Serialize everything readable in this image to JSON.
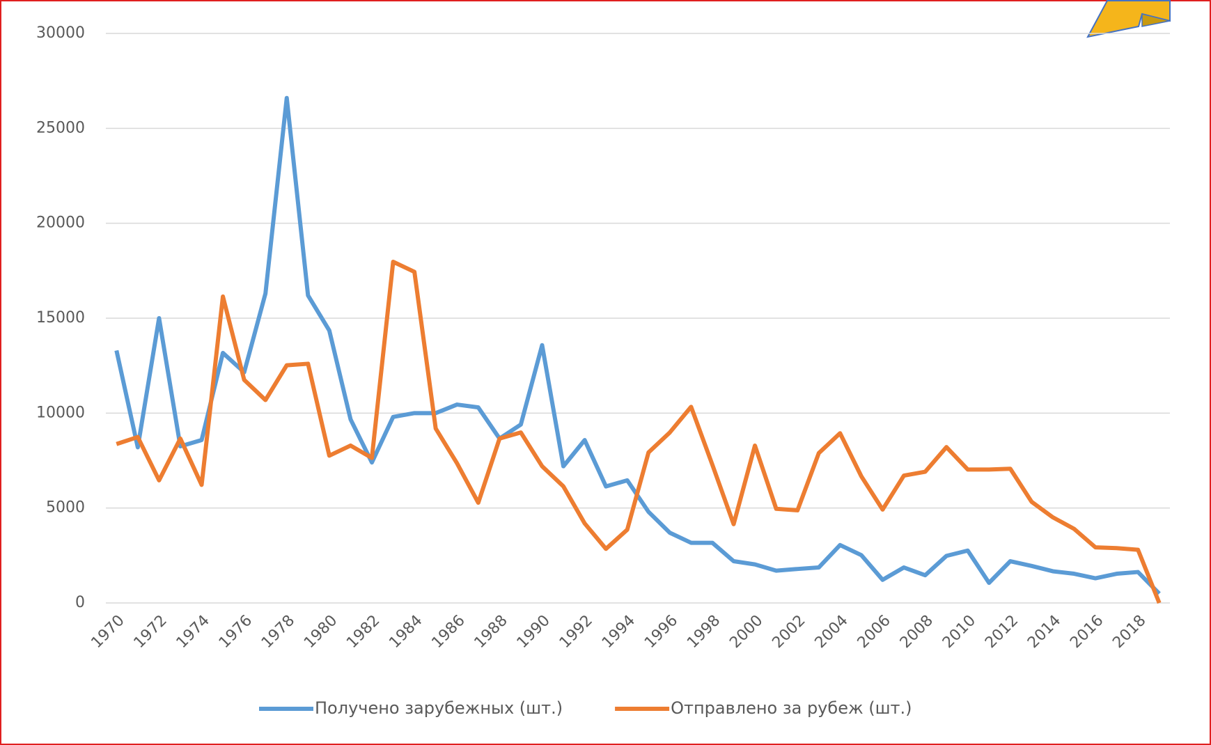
{
  "chart_data": {
    "type": "line",
    "categories": [
      "1970",
      null,
      "1972",
      null,
      "1974",
      null,
      "1976",
      null,
      "1978",
      null,
      "1980",
      null,
      "1982",
      null,
      "1984",
      null,
      "1986",
      null,
      "1988",
      null,
      "1990",
      null,
      "1992",
      null,
      "1994",
      null,
      "1996",
      null,
      "1998",
      null,
      "2000",
      null,
      "2002",
      null,
      "2004",
      null,
      "2006",
      null,
      "2008",
      null,
      "2010",
      null,
      "2012",
      null,
      "2014",
      null,
      "2016",
      null,
      "2018",
      null
    ],
    "series": [
      {
        "name": "Получено зарубежных (шт.)",
        "color": "#5b9bd5",
        "values": [
          13300,
          8200,
          15000,
          8250,
          8580,
          13170,
          12150,
          16300,
          26600,
          16200,
          14350,
          9670,
          7400,
          9800,
          10000,
          10000,
          10450,
          10300,
          8660,
          9400,
          13580,
          7200,
          8580,
          6140,
          6460,
          4800,
          3700,
          3170,
          3170,
          2200,
          2030,
          1700,
          1790,
          1870,
          3050,
          2520,
          1220,
          1870,
          1460,
          2480,
          2760,
          1060,
          2200,
          1950,
          1670,
          1540,
          1300,
          1540,
          1630,
          490
        ]
      },
      {
        "name": "Отправлено за рубеж (шт.)",
        "color": "#ed7d31",
        "values": [
          8370,
          8740,
          6460,
          8660,
          6220,
          16140,
          11750,
          10690,
          12520,
          12600,
          7760,
          8290,
          7640,
          17970,
          17440,
          9190,
          7360,
          5280,
          8660,
          8980,
          7200,
          6140,
          4190,
          2850,
          3860,
          7930,
          8980,
          10330,
          7280,
          4150,
          8290,
          4960,
          4880,
          7890,
          8940,
          6670,
          4920,
          6710,
          6910,
          8210,
          7030,
          7030,
          7070,
          5330,
          4510,
          3900,
          2930,
          2890,
          2800,
          0
        ]
      }
    ],
    "ylim": [
      0,
      30000
    ],
    "yticks": [
      0,
      5000,
      10000,
      15000,
      20000,
      25000,
      30000
    ],
    "grid": true,
    "legend": "bottom"
  }
}
